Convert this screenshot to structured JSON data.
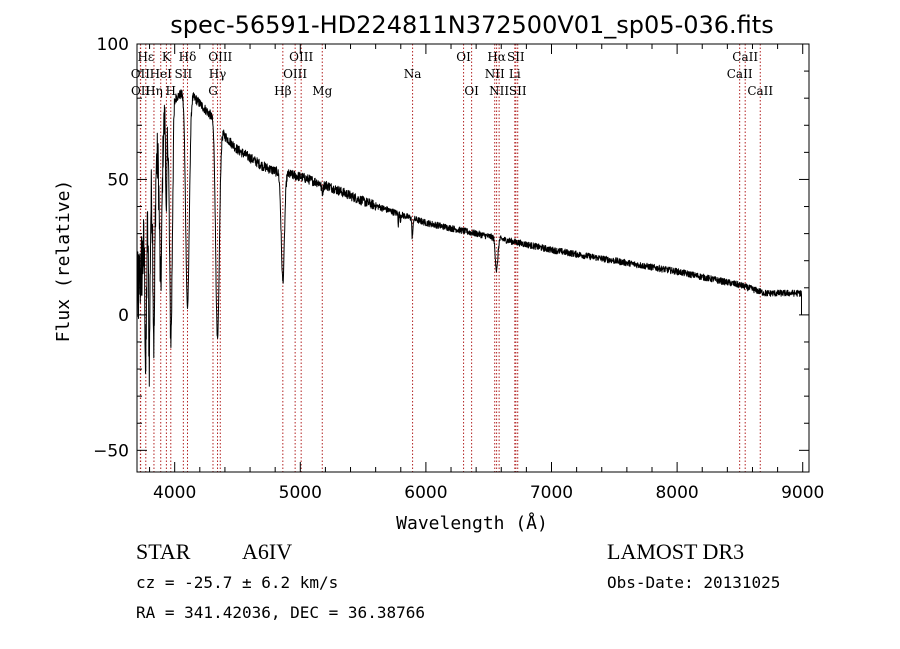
{
  "chart_data": {
    "type": "line",
    "title": "spec-56591-HD224811N372500V01_sp05-036.fits",
    "xlabel": "Wavelength (Å)",
    "ylabel": "Flux (relative)",
    "xlim": [
      3700,
      9050
    ],
    "ylim": [
      -58,
      100
    ],
    "xticks": [
      4000,
      5000,
      6000,
      7000,
      8000,
      9000
    ],
    "yticks": [
      -50,
      0,
      50,
      100
    ],
    "spectral_lines": [
      {
        "name": "Hε",
        "x": 3770,
        "row": 0
      },
      {
        "name": "OII",
        "x": 3727,
        "row": 1
      },
      {
        "name": "OII",
        "x": 3729,
        "row": 2
      },
      {
        "name": "Hη",
        "x": 3835,
        "row": 2
      },
      {
        "name": "HeI",
        "x": 3889,
        "row": 1
      },
      {
        "name": "K",
        "x": 3934,
        "row": 0
      },
      {
        "name": "H",
        "x": 3969,
        "row": 2
      },
      {
        "name": "Hδ",
        "x": 4102,
        "row": 0
      },
      {
        "name": "SII",
        "x": 4069,
        "row": 1
      },
      {
        "name": "OIII",
        "x": 4363,
        "row": 0
      },
      {
        "name": "Hγ",
        "x": 4341,
        "row": 1
      },
      {
        "name": "G",
        "x": 4305,
        "row": 2
      },
      {
        "name": "Hβ",
        "x": 4861,
        "row": 2
      },
      {
        "name": "OIII",
        "x": 5007,
        "row": 0
      },
      {
        "name": "OIII",
        "x": 4959,
        "row": 1
      },
      {
        "name": "Mg",
        "x": 5175,
        "row": 2
      },
      {
        "name": "Na",
        "x": 5894,
        "row": 1
      },
      {
        "name": "OI",
        "x": 6300,
        "row": 0
      },
      {
        "name": "OI",
        "x": 6364,
        "row": 2
      },
      {
        "name": "Hα",
        "x": 6563,
        "row": 0
      },
      {
        "name": "NII",
        "x": 6548,
        "row": 1
      },
      {
        "name": "NII",
        "x": 6583,
        "row": 2
      },
      {
        "name": "SII",
        "x": 6716,
        "row": 0
      },
      {
        "name": "Li",
        "x": 6708,
        "row": 1
      },
      {
        "name": "SII",
        "x": 6731,
        "row": 2
      },
      {
        "name": "CaII",
        "x": 8542,
        "row": 0
      },
      {
        "name": "CaII",
        "x": 8498,
        "row": 1
      },
      {
        "name": "CaII",
        "x": 8662,
        "row": 2
      }
    ],
    "absorption_features": [
      {
        "x": 3770,
        "depth": 50,
        "width": 8
      },
      {
        "x": 3798,
        "depth": 55,
        "width": 8
      },
      {
        "x": 3835,
        "depth": 60,
        "width": 10
      },
      {
        "x": 3889,
        "depth": 55,
        "width": 14
      },
      {
        "x": 3934,
        "depth": 40,
        "width": 6
      },
      {
        "x": 3970,
        "depth": 85,
        "width": 16
      },
      {
        "x": 4102,
        "depth": 80,
        "width": 20
      },
      {
        "x": 4341,
        "depth": 80,
        "width": 20
      },
      {
        "x": 4861,
        "depth": 40,
        "width": 18
      },
      {
        "x": 5175,
        "depth": 3,
        "width": 10
      },
      {
        "x": 5780,
        "depth": 4,
        "width": 3
      },
      {
        "x": 5797,
        "depth": 3,
        "width": 3
      },
      {
        "x": 5890,
        "depth": 6,
        "width": 4
      },
      {
        "x": 5896,
        "depth": 5,
        "width": 4
      },
      {
        "x": 6563,
        "depth": 12,
        "width": 14
      }
    ],
    "continuum": [
      {
        "x": 3700,
        "y": 5
      },
      {
        "x": 3800,
        "y": 40
      },
      {
        "x": 3900,
        "y": 70
      },
      {
        "x": 4000,
        "y": 80
      },
      {
        "x": 4100,
        "y": 83
      },
      {
        "x": 4200,
        "y": 78
      },
      {
        "x": 4300,
        "y": 73
      },
      {
        "x": 4400,
        "y": 66
      },
      {
        "x": 4500,
        "y": 61
      },
      {
        "x": 4600,
        "y": 58
      },
      {
        "x": 4700,
        "y": 55
      },
      {
        "x": 4800,
        "y": 53
      },
      {
        "x": 5000,
        "y": 51
      },
      {
        "x": 5200,
        "y": 48
      },
      {
        "x": 5500,
        "y": 42
      },
      {
        "x": 5800,
        "y": 37
      },
      {
        "x": 6000,
        "y": 34
      },
      {
        "x": 6500,
        "y": 29
      },
      {
        "x": 7000,
        "y": 24
      },
      {
        "x": 7500,
        "y": 20
      },
      {
        "x": 8000,
        "y": 16
      },
      {
        "x": 8500,
        "y": 11
      },
      {
        "x": 8700,
        "y": 8
      },
      {
        "x": 9000,
        "y": 8
      }
    ],
    "x_end": 8990
  },
  "info": {
    "object_class": "STAR",
    "subclass": "A6IV",
    "survey": "LAMOST DR3",
    "redshift_text": "cz = -25.7 ± 6.2 km/s",
    "obs_date_text": "Obs-Date: 20131025",
    "coords_text": "RA = 341.42036, DEC =  36.38766"
  }
}
